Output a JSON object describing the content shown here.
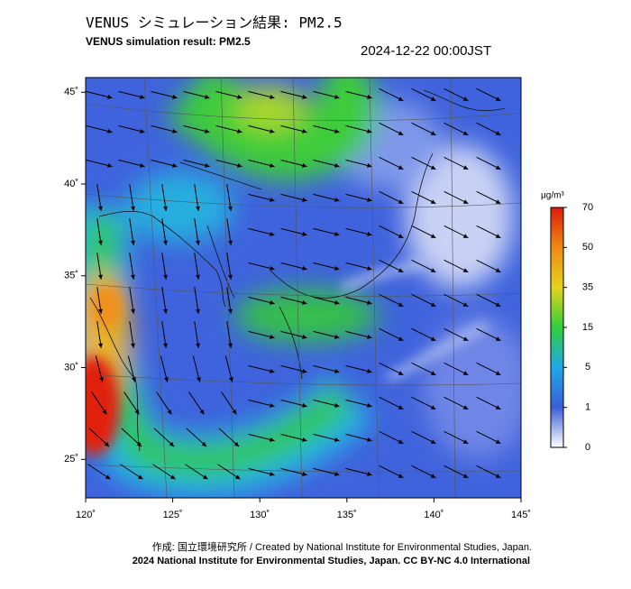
{
  "header": {
    "title": "VENUS シミュレーション結果: PM2.5",
    "subtitle": "VENUS simulation result: PM2.5",
    "datetime": "2024-12-22 00:00JST"
  },
  "map": {
    "xlim": [
      120,
      145
    ],
    "ylim": [
      22.9,
      45.8
    ],
    "xticks": [
      {
        "value": 120,
        "label": "120˚"
      },
      {
        "value": 125,
        "label": "125˚"
      },
      {
        "value": 130,
        "label": "130˚"
      },
      {
        "value": 135,
        "label": "135˚"
      },
      {
        "value": 140,
        "label": "140˚"
      },
      {
        "value": 145,
        "label": "145˚"
      }
    ],
    "yticks": [
      {
        "value": 25,
        "label": "25˚"
      },
      {
        "value": 30,
        "label": "30˚"
      },
      {
        "value": 35,
        "label": "35˚"
      },
      {
        "value": 40,
        "label": "40˚"
      },
      {
        "value": 45,
        "label": "45˚"
      }
    ]
  },
  "colorbar": {
    "unit": "μg/m³",
    "ticks": [
      0,
      1,
      5,
      15,
      35,
      50,
      70
    ],
    "colors": [
      "#ffffff",
      "#3a5fd9",
      "#1fa8e8",
      "#2fcf3a",
      "#e6d21a",
      "#f08a14",
      "#e01a0a"
    ]
  },
  "footer": {
    "credit": "作成: 国立環境研究所 / Created by National Institute for Environmental Studies, Japan.",
    "license": "2024 National Institute for Environmental Studies, Japan. CC BY-NC 4.0 International"
  }
}
